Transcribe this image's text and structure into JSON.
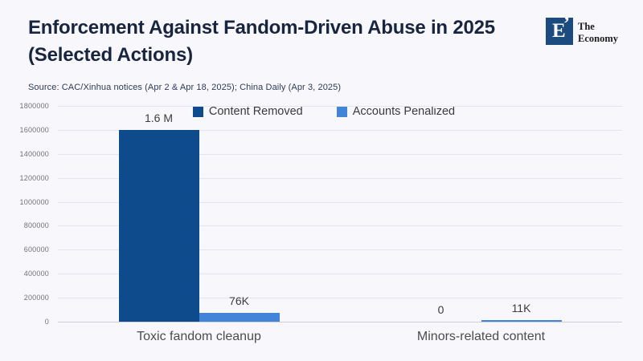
{
  "header": {
    "title": "Enforcement Against Fandom-Driven Abuse in 2025 (Selected Actions)",
    "source": "Source: CAC/Xinhua notices (Apr 2 & Apr 18, 2025); China Daily (Apr 3, 2025)"
  },
  "logo": {
    "monogram": "E",
    "tick": "’",
    "name_line1": "The",
    "name_line2": "Economy",
    "square_color": "#1c4b80"
  },
  "chart_data": {
    "type": "bar",
    "title": "Enforcement Against Fandom-Driven Abuse in 2025 (Selected Actions)",
    "categories": [
      "Toxic fandom cleanup",
      "Minors-related content"
    ],
    "series": [
      {
        "name": "Content Removed",
        "color": "#0e4b8c",
        "values": [
          1600000,
          0
        ],
        "value_labels": [
          "1.6 M",
          "0"
        ]
      },
      {
        "name": "Accounts Penalized",
        "color": "#4285d8",
        "values": [
          76000,
          11000
        ],
        "value_labels": [
          "76K",
          "11K"
        ]
      }
    ],
    "xlabel": "",
    "ylabel": "",
    "ylim": [
      0,
      1800000
    ],
    "yticks": [
      0,
      200000,
      400000,
      600000,
      800000,
      1000000,
      1200000,
      1400000,
      1600000,
      1800000
    ],
    "grid": true,
    "legend_position": "top"
  }
}
